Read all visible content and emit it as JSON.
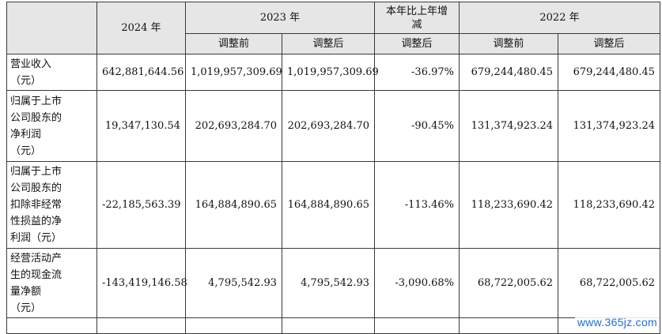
{
  "header": {
    "col_2024": "2024 年",
    "col_2023": "2023 年",
    "col_change": "本年比上年增减",
    "col_2022": "2022 年",
    "sub_before": "调整前",
    "sub_after": "调整后",
    "sub_change_after": "调整后",
    "sub_before_2022": "调整前",
    "sub_after_2022": "调整后"
  },
  "rows": [
    {
      "label_lines": [
        "营业收入",
        "（元）"
      ],
      "values": [
        "642,881,644.56",
        "1,019,957,309.69",
        "1,019,957,309.69",
        "-36.97%",
        "679,244,480.45",
        "679,244,480.45"
      ]
    },
    {
      "label_lines": [
        "归属于上市",
        "公司股东的",
        "净利润",
        "（元）"
      ],
      "values": [
        "19,347,130.54",
        "202,693,284.70",
        "202,693,284.70",
        "-90.45%",
        "131,374,923.24",
        "131,374,923.24"
      ]
    },
    {
      "label_lines": [
        "归属于上市",
        "公司股东的",
        "扣除非经常",
        "性损益的净",
        "利润（元）"
      ],
      "values": [
        "-22,185,563.39",
        "164,884,890.65",
        "164,884,890.65",
        "-113.46%",
        "118,233,690.42",
        "118,233,690.42"
      ]
    },
    {
      "label_lines": [
        "经营活动产",
        "生的现金流",
        "量净额",
        "（元）"
      ],
      "values": [
        "-143,419,146.58",
        "4,795,542.93",
        "4,795,542.93",
        "-3,090.68%",
        "68,722,005.62",
        "68,722,005.62"
      ]
    }
  ],
  "watermark": "www.365jz.com"
}
